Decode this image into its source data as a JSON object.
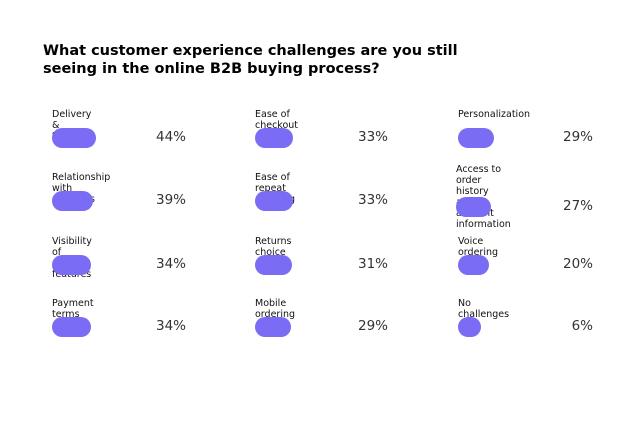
{
  "chart_data": {
    "type": "bar",
    "title": "What customer experience challenges are you still seeing in the online B2B buying process?",
    "unit": "%",
    "bar_color": "#7b6cf6",
    "items": [
      {
        "label": "Delivery & tracking",
        "value": 44,
        "display": "44%"
      },
      {
        "label": "Relationship with suppliers",
        "value": 39,
        "display": "39%"
      },
      {
        "label": "Visibility of product features",
        "value": 34,
        "display": "34%"
      },
      {
        "label": "Payment terms",
        "value": 34,
        "display": "34%"
      },
      {
        "label": "Ease of checkout",
        "value": 33,
        "display": "33%"
      },
      {
        "label": "Ease of repeat ordering",
        "value": 33,
        "display": "33%"
      },
      {
        "label": "Returns choice",
        "value": 31,
        "display": "31%"
      },
      {
        "label": "Mobile ordering",
        "value": 29,
        "display": "29%"
      },
      {
        "label": "Personalization",
        "value": 29,
        "display": "29%"
      },
      {
        "label": "Access to order history\nand account information",
        "value": 27,
        "display": "27%"
      },
      {
        "label": "Voice ordering",
        "value": 20,
        "display": "20%"
      },
      {
        "label": "No challenges",
        "value": 6,
        "display": "6%"
      }
    ]
  }
}
